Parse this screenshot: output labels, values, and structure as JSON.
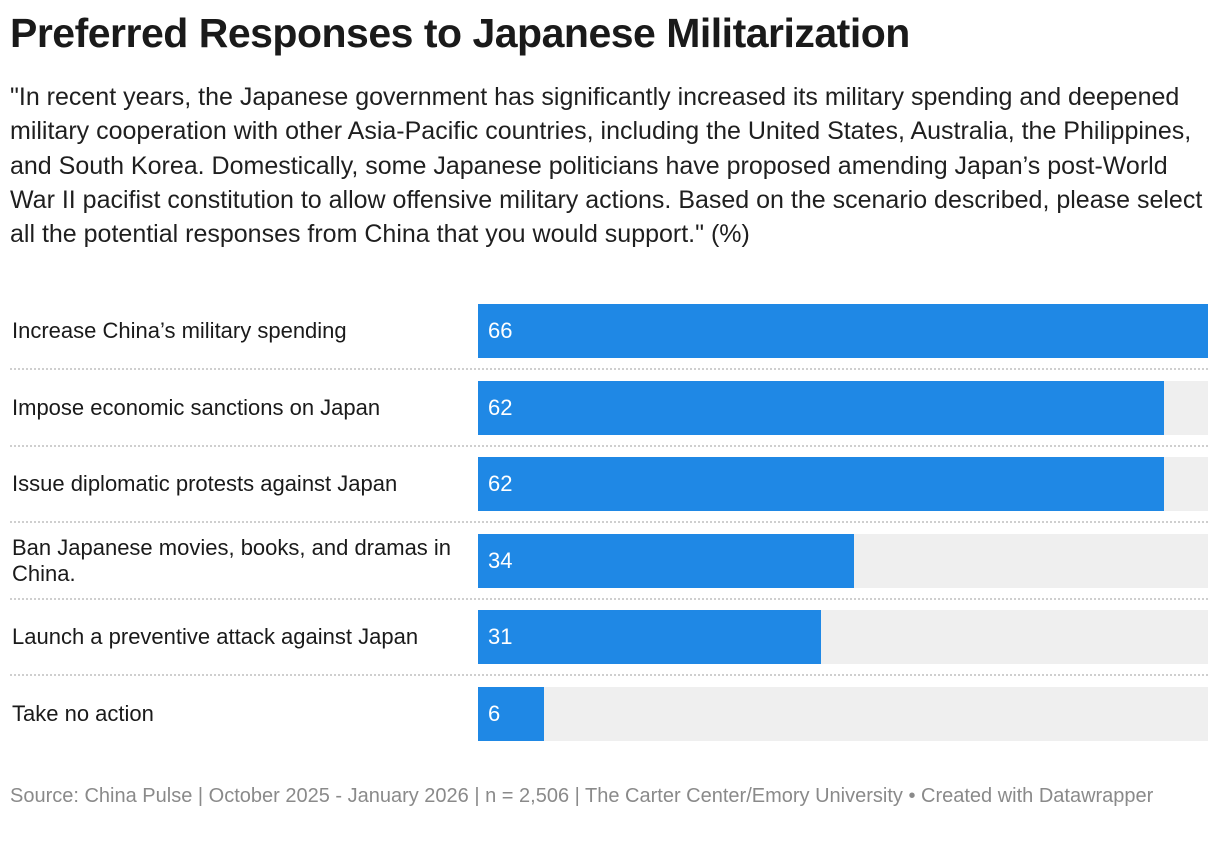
{
  "header": {
    "title": "Preferred Responses to Japanese Militarization",
    "subtitle": "\"In recent years, the Japanese government has significantly increased its military spending and deepened military cooperation with other Asia-Pacific countries, including the United States, Australia, the Philippines, and South Korea. Domestically, some Japanese politicians have proposed amending Japan’s post-World War II pacifist constitution to allow offensive military actions. Based on the scenario described, please select all the potential responses from China that you would support.\" (%)"
  },
  "chart_data": {
    "type": "bar",
    "orientation": "horizontal",
    "categories": [
      "Increase China’s military spending",
      "Impose economic sanctions on Japan",
      "Issue diplomatic protests against Japan",
      "Ban Japanese movies, books, and dramas in China.",
      "Launch a preventive attack against Japan",
      "Take no action"
    ],
    "values": [
      66,
      62,
      62,
      34,
      31,
      6
    ],
    "xlim": [
      0,
      66
    ],
    "bar_color": "#1f88e5",
    "track_color": "#efefef",
    "grid": false
  },
  "footer": {
    "source": "Source: China Pulse | October 2025 - January 2026 | n = 2,506 | The Carter Center/Emory University • Created with Datawrapper"
  }
}
